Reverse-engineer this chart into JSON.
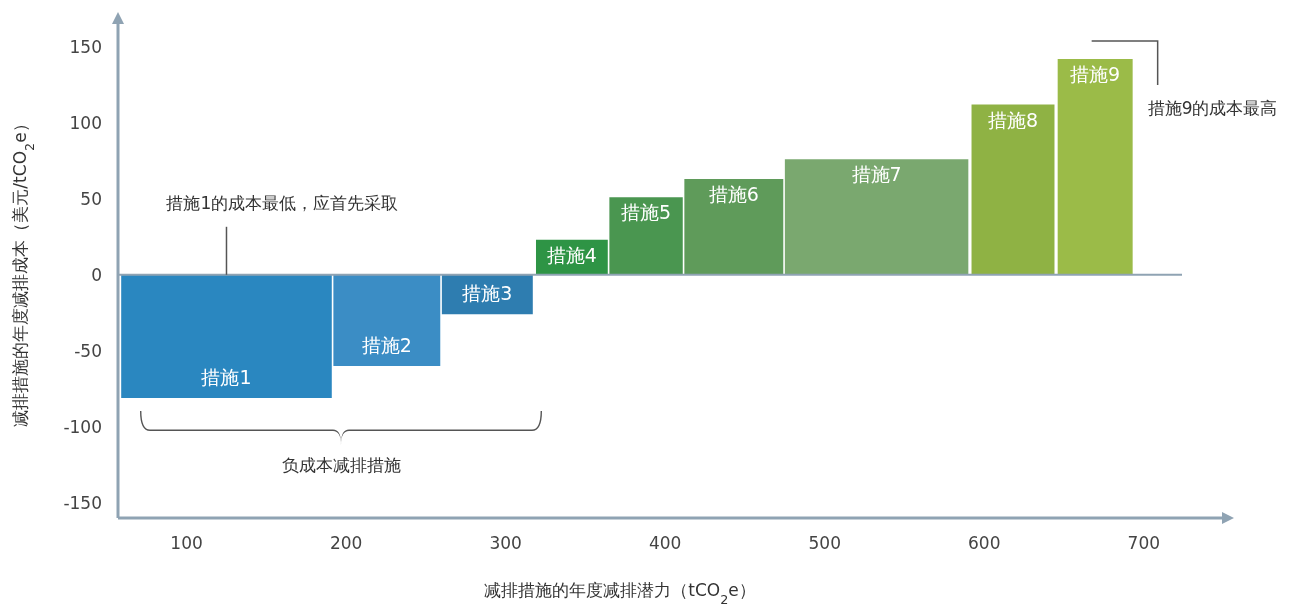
{
  "chart_data": {
    "type": "area",
    "xlabel": "减排措施的年度减排潜力（tCO$_{2}$e）",
    "ylabel": "减排措施的年度减排成本（美元/tCO$_{2}$e）",
    "xlim": [
      57,
      749
    ],
    "ylim": [
      -160,
      165
    ],
    "xticks": [
      100,
      200,
      300,
      400,
      500,
      600,
      700
    ],
    "yticks": [
      -150,
      -100,
      -50,
      0,
      50,
      100,
      150
    ],
    "grid": false,
    "legend": false,
    "series": [
      {
        "name": "措施1",
        "color": "#2a87c0",
        "x": [
          59,
          191
        ],
        "values": [
          -81,
          -81
        ]
      },
      {
        "name": "措施2",
        "color": "#3b8dc5",
        "x": [
          192,
          259
        ],
        "values": [
          -60,
          -60
        ]
      },
      {
        "name": "措施3",
        "color": "#2e7db0",
        "x": [
          260,
          317
        ],
        "values": [
          -26,
          -26
        ]
      },
      {
        "name": "措施4",
        "color": "#2e9445",
        "x": [
          319,
          364
        ],
        "values": [
          23,
          23
        ]
      },
      {
        "name": "措施5",
        "color": "#4a9650",
        "x": [
          365,
          411
        ],
        "values": [
          51,
          51
        ]
      },
      {
        "name": "措施6",
        "color": "#5f9b5a",
        "x": [
          412,
          474
        ],
        "values": [
          63,
          63
        ]
      },
      {
        "name": "措施7",
        "color": "#7aa86f",
        "x": [
          475,
          590
        ],
        "values": [
          76,
          76
        ]
      },
      {
        "name": "措施8",
        "color": "#8fb244",
        "x": [
          592,
          644
        ],
        "values": [
          112,
          112
        ]
      },
      {
        "name": "措施9",
        "color": "#9bbb48",
        "x": [
          646,
          693
        ],
        "values": [
          142,
          142
        ]
      }
    ],
    "ref_lines": [
      {
        "axis": "y",
        "value": 0,
        "color": "#8fa3b3"
      }
    ],
    "annotations": [
      {
        "text": "措施1的成本最低，应首先采取",
        "x": 125,
        "y": 0
      },
      {
        "text": "措施9的成本最高",
        "x": 693,
        "y": 142
      },
      "负成本减排措施"
    ]
  }
}
